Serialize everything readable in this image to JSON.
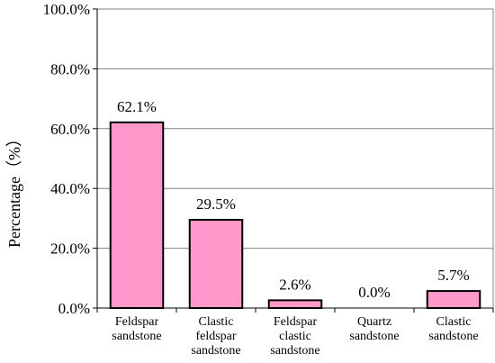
{
  "chart_data": {
    "type": "bar",
    "title": "",
    "xlabel": "",
    "ylabel": "Percentage（%）",
    "ylim": [
      0,
      100
    ],
    "yticks": [
      0,
      20,
      40,
      60,
      80,
      100
    ],
    "ytick_labels": [
      "0.0%",
      "20.0%",
      "40.0%",
      "60.0%",
      "80.0%",
      "100.0%"
    ],
    "grid": true,
    "categories": [
      [
        "Feldspar",
        "sandstone"
      ],
      [
        "Clastic",
        "feldspar",
        "sandstone"
      ],
      [
        "Feldspar",
        "clastic",
        "sandstone"
      ],
      [
        "Quartz",
        "sandstone"
      ],
      [
        "Clastic",
        "sandstone"
      ]
    ],
    "values": [
      62.1,
      29.5,
      2.6,
      0.0,
      5.7
    ],
    "data_labels": [
      "62.1%",
      "29.5%",
      "2.6%",
      "0.0%",
      "5.7%"
    ],
    "bar_color": "#ff99cc",
    "bar_edge_color": "#000000",
    "grid_color": "#808080",
    "background": "#ffffff"
  }
}
